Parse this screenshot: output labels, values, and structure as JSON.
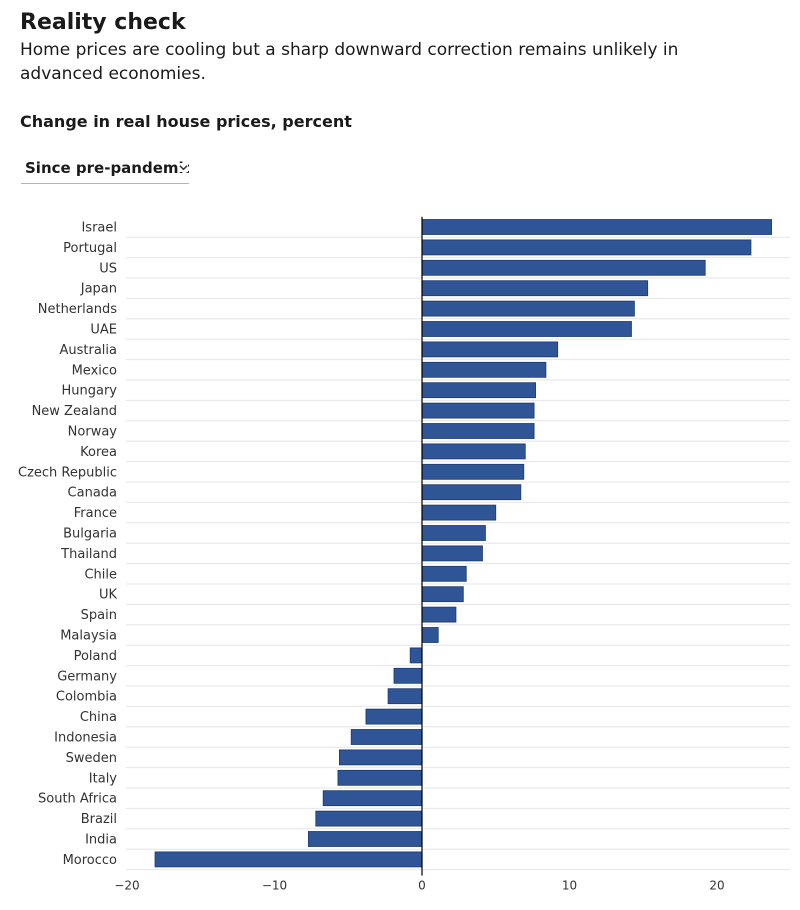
{
  "header": {
    "title": "Reality check",
    "subtitle": "Home prices are cooling but a sharp downward correction remains unlikely in advanced economies."
  },
  "chart_heading": "Change in real house prices, percent",
  "dropdown": {
    "selected": "Since pre-pandemic",
    "icon": "chevron-down-icon"
  },
  "colors": {
    "bar": "#2f5597",
    "bar_stroke": "#1c3a6e",
    "zero_line": "#000000",
    "grid": "#e6e6e6"
  },
  "chart_data": {
    "type": "bar",
    "orientation": "horizontal",
    "title": "Change in real house prices, percent",
    "categories": [
      "Israel",
      "Portugal",
      "US",
      "Japan",
      "Netherlands",
      "UAE",
      "Australia",
      "Mexico",
      "Hungary",
      "New Zealand",
      "Norway",
      "Korea",
      "Czech Republic",
      "Canada",
      "France",
      "Bulgaria",
      "Thailand",
      "Chile",
      "UK",
      "Spain",
      "Malaysia",
      "Poland",
      "Germany",
      "Colombia",
      "China",
      "Indonesia",
      "Sweden",
      "Italy",
      "South Africa",
      "Brazil",
      "India",
      "Morocco"
    ],
    "values": [
      23.7,
      22.3,
      19.2,
      15.3,
      14.4,
      14.2,
      9.2,
      8.4,
      7.7,
      7.6,
      7.6,
      7.0,
      6.9,
      6.7,
      5.0,
      4.3,
      4.1,
      3.0,
      2.8,
      2.3,
      1.1,
      -0.8,
      -1.9,
      -2.3,
      -3.8,
      -4.8,
      -5.6,
      -5.7,
      -6.7,
      -7.2,
      -7.7,
      -18.1
    ],
    "xlim": [
      -20,
      25
    ],
    "xticks": [
      -20,
      -10,
      0,
      10,
      20
    ],
    "xtick_labels": [
      "−20",
      "−10",
      "0",
      "10",
      "20"
    ],
    "grid": true
  }
}
